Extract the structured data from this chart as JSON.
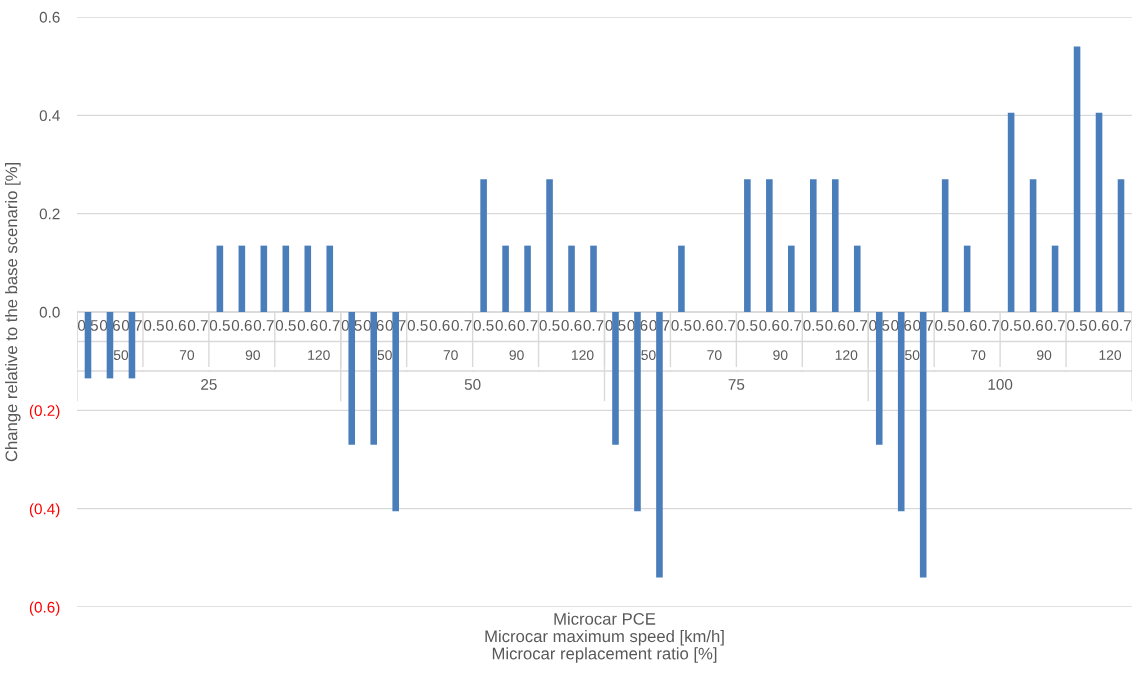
{
  "chart_data": {
    "type": "bar",
    "ylabel": "Change relative to the base scenario [%]",
    "xlabel": "Microcar PCE\nMicrocar maximum speed [km/h]\nMicrocar replacement ratio [%]",
    "categories": [
      "0.5",
      "0.6",
      "0.7",
      "0.5",
      "0.6",
      "0.7",
      "0.5",
      "0.6",
      "0.7",
      "0.5",
      "0.6",
      "0.7",
      "0.5",
      "0.6",
      "0.7",
      "0.5",
      "0.6",
      "0.7",
      "0.5",
      "0.6",
      "0.7",
      "0.5",
      "0.6",
      "0.7",
      "0.5",
      "0.6",
      "0.7",
      "0.5",
      "0.6",
      "0.7",
      "0.5",
      "0.6",
      "0.7",
      "0.5",
      "0.6",
      "0.7",
      "0.5",
      "0.6",
      "0.7",
      "0.5",
      "0.6",
      "0.7",
      "0.5",
      "0.6",
      "0.7",
      "0.5",
      "0.6",
      "0.7"
    ],
    "values": [
      -0.135,
      -0.135,
      -0.135,
      0,
      0,
      0,
      0.135,
      0.135,
      0.135,
      0.135,
      0.135,
      0.135,
      -0.27,
      -0.27,
      -0.405,
      0,
      0,
      0,
      0.27,
      0.135,
      0.135,
      0.27,
      0.135,
      0.135,
      -0.27,
      -0.405,
      -0.54,
      0.135,
      0,
      0,
      0.27,
      0.27,
      0.135,
      0.27,
      0.27,
      0.135,
      -0.27,
      -0.405,
      -0.54,
      0.27,
      0.135,
      0,
      0.405,
      0.27,
      0.135,
      0.54,
      0.405,
      0.27
    ],
    "color": "#4a7ebb",
    "annotations": [
      "50",
      "70",
      "90",
      "120",
      "50",
      "70",
      "90",
      "120",
      "50",
      "70",
      "90",
      "120",
      "50",
      "70",
      "90",
      "120",
      "25",
      "50",
      "75",
      "100"
    ],
    "ylim": [
      -0.6,
      0.6
    ],
    "yticks": [
      {
        "value": -0.6,
        "label": "(0.6)"
      },
      {
        "value": -0.4,
        "label": "(0.4)"
      },
      {
        "value": -0.2,
        "label": "(0.2)"
      },
      {
        "value": 0,
        "label": "0.0"
      },
      0.2,
      0.4,
      0.6
    ],
    "grid": "y"
  }
}
